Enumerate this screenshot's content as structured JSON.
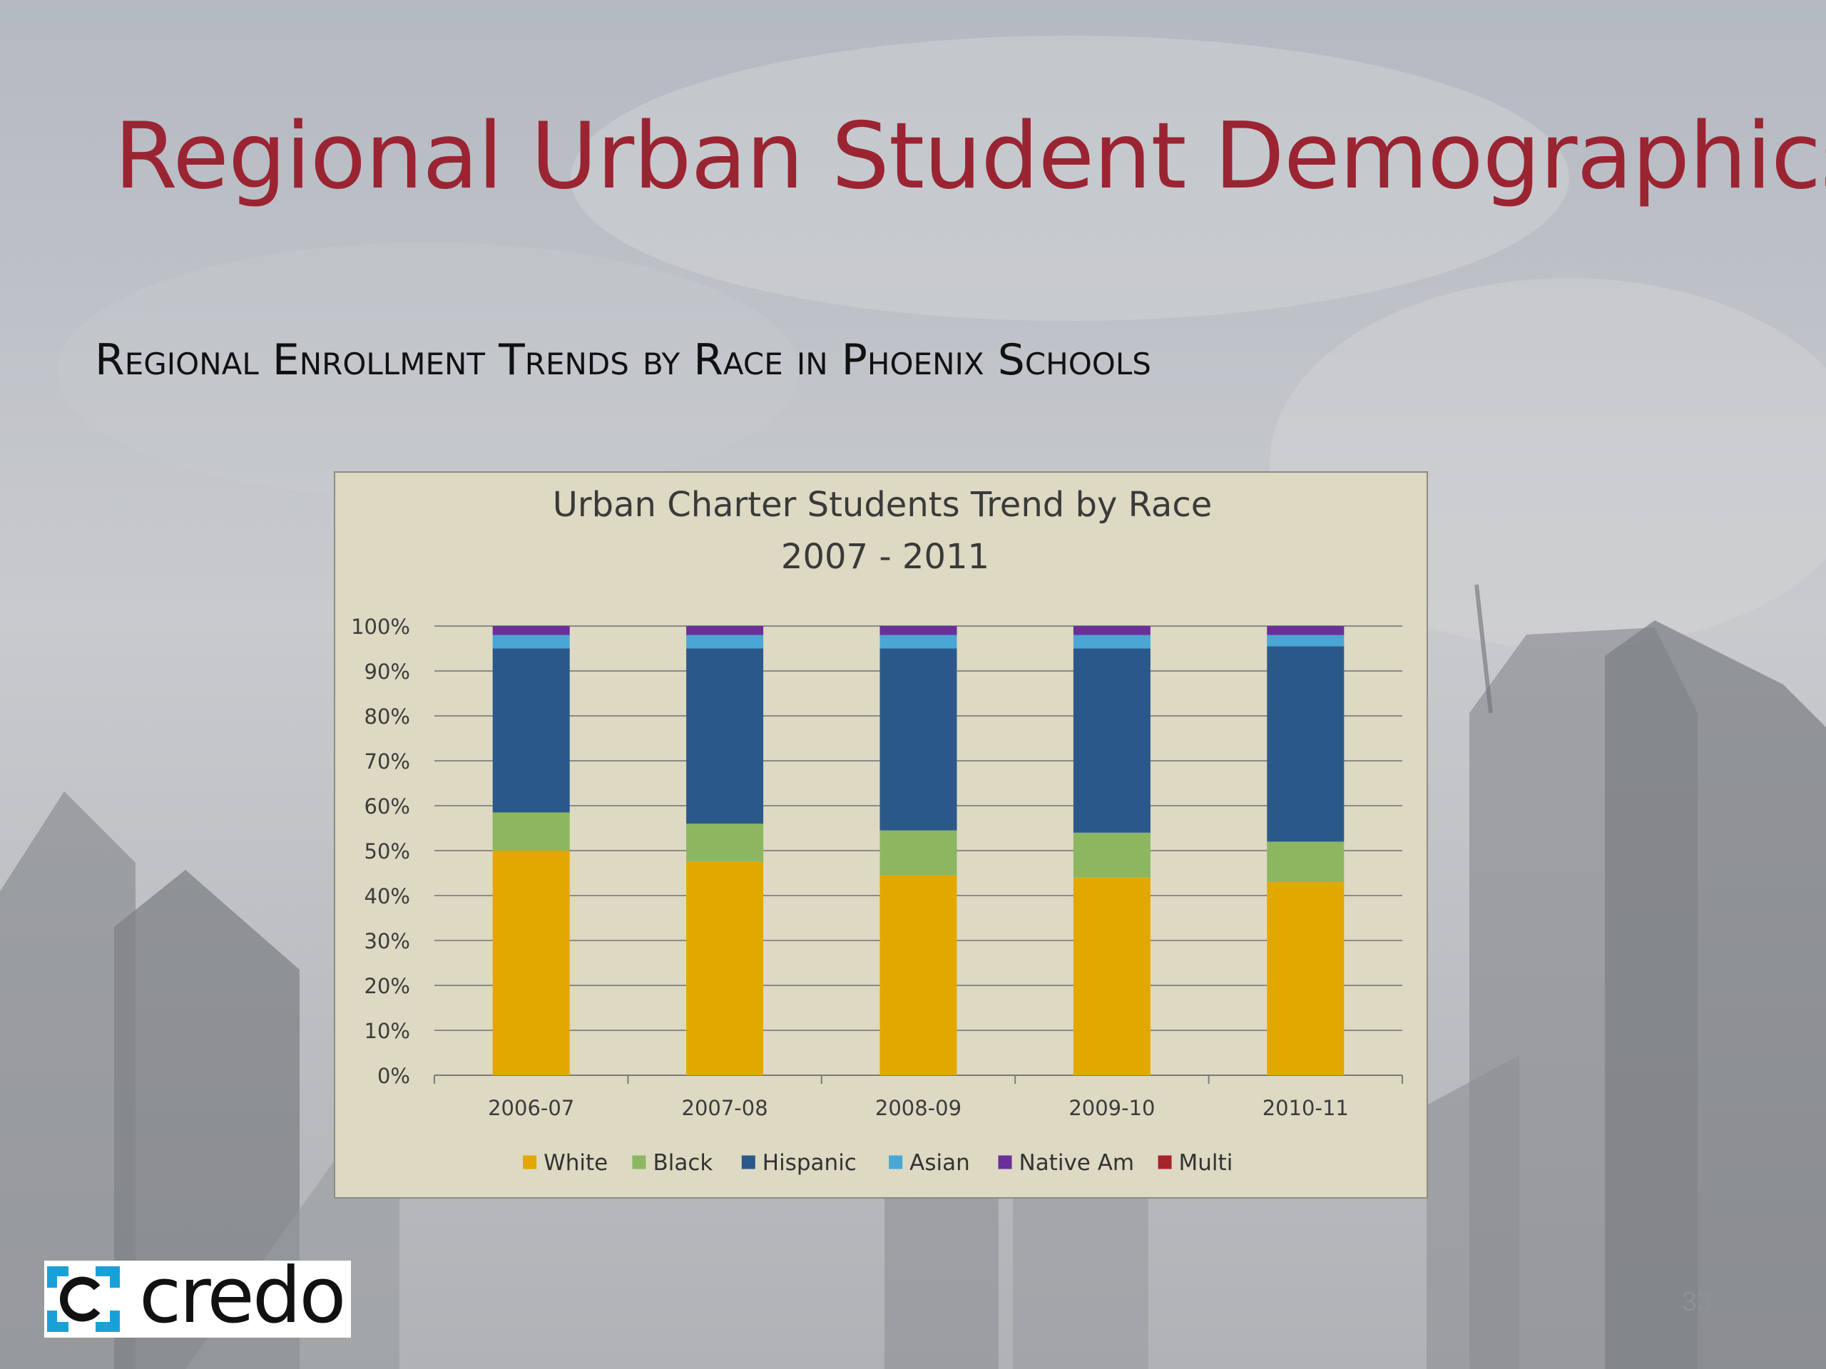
{
  "slide": {
    "title": "Regional Urban Student Demographics",
    "subtitle": "Regional Enrollment Trends by Race in Phoenix Schools",
    "page_number": "33"
  },
  "logo": {
    "text": "credo"
  },
  "colors": {
    "title": "#9b2433",
    "chart_background": "#ddd9c2",
    "white": "#e3a800",
    "black": "#8cb760",
    "hispanic": "#2a5989",
    "asian": "#4aa6d4",
    "native_am": "#6a2f99",
    "multi": "#a8232a",
    "logo_accent": "#1aa0d8"
  },
  "chart_data": {
    "type": "bar",
    "stacked": true,
    "percent": true,
    "title": "Urban Charter Students Trend by Race",
    "subtitle": "2007 - 2011",
    "xlabel": "",
    "ylabel": "",
    "ylim": [
      0,
      100
    ],
    "yticks": [
      "0%",
      "10%",
      "20%",
      "30%",
      "40%",
      "50%",
      "60%",
      "70%",
      "80%",
      "90%",
      "100%"
    ],
    "grid": true,
    "legend_position": "bottom",
    "categories": [
      "2006-07",
      "2007-08",
      "2008-09",
      "2009-10",
      "2010-11"
    ],
    "series": [
      {
        "name": "White",
        "color": "#e3a800",
        "values": [
          50,
          47.5,
          44.5,
          44,
          43
        ]
      },
      {
        "name": "Black",
        "color": "#8cb760",
        "values": [
          8.5,
          8.5,
          10,
          10,
          9
        ]
      },
      {
        "name": "Hispanic",
        "color": "#2a5989",
        "values": [
          36.5,
          39,
          40.5,
          41,
          43.5
        ]
      },
      {
        "name": "Asian",
        "color": "#4aa6d4",
        "values": [
          3,
          3,
          3,
          3,
          2.5
        ]
      },
      {
        "name": "Native Am",
        "color": "#6a2f99",
        "values": [
          2,
          2,
          2,
          2,
          2
        ]
      },
      {
        "name": "Multi",
        "color": "#a8232a",
        "values": [
          0,
          0,
          0,
          0,
          0
        ]
      }
    ]
  }
}
